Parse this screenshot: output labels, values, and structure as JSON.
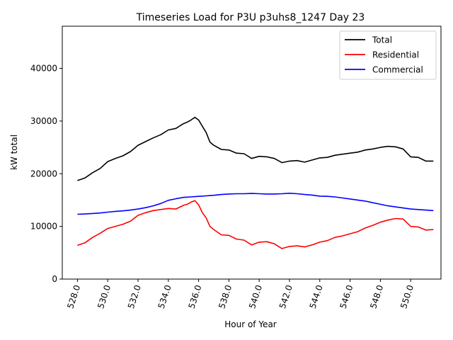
{
  "chart_data": {
    "type": "line",
    "title": "Timeseries Load for P3U p3uhs8_1247  Day 23",
    "xlabel": "Hour of Year",
    "ylabel": "kW total",
    "xlim": [
      527.0,
      552.0
    ],
    "ylim": [
      0,
      48000
    ],
    "x_ticks": [
      528.0,
      530.0,
      532.0,
      534.0,
      536.0,
      538.0,
      540.0,
      542.0,
      544.0,
      546.0,
      548.0,
      550.0
    ],
    "x_tick_labels": [
      "528.0",
      "530.0",
      "532.0",
      "534.0",
      "536.0",
      "538.0",
      "540.0",
      "542.0",
      "544.0",
      "546.0",
      "548.0",
      "550.0"
    ],
    "y_ticks": [
      0,
      10000,
      20000,
      30000,
      40000
    ],
    "y_tick_labels": [
      "0",
      "10000",
      "20000",
      "30000",
      "40000"
    ],
    "legend_position": "top-right",
    "series": [
      {
        "name": "Total",
        "color": "#000000",
        "x": [
          528.0,
          528.5,
          529.0,
          529.5,
          530.0,
          530.5,
          531.0,
          531.5,
          532.0,
          532.5,
          533.0,
          533.5,
          534.0,
          534.5,
          535.0,
          535.25,
          535.5,
          535.75,
          536.0,
          536.25,
          536.5,
          536.75,
          537.0,
          537.5,
          538.0,
          538.5,
          539.0,
          539.5,
          540.0,
          540.5,
          541.0,
          541.5,
          542.0,
          542.5,
          543.0,
          543.5,
          544.0,
          544.5,
          545.0,
          545.5,
          546.0,
          546.5,
          547.0,
          547.5,
          548.0,
          548.5,
          549.0,
          549.5,
          550.0,
          550.5,
          551.0,
          551.5
        ],
        "values": [
          18700,
          19200,
          20200,
          21000,
          22300,
          22900,
          23400,
          24200,
          25400,
          26100,
          26800,
          27400,
          28300,
          28600,
          29500,
          29800,
          30200,
          30700,
          30200,
          29000,
          27800,
          26000,
          25400,
          24600,
          24500,
          23900,
          23800,
          22900,
          23300,
          23200,
          22900,
          22100,
          22400,
          22500,
          22200,
          22600,
          23000,
          23100,
          23500,
          23700,
          23900,
          24100,
          24500,
          24700,
          25000,
          25200,
          25100,
          24700,
          23200,
          23100,
          22400,
          22400
        ]
      },
      {
        "name": "Residential",
        "color": "#ff0000",
        "x": [
          528.0,
          528.5,
          529.0,
          529.5,
          530.0,
          530.5,
          531.0,
          531.5,
          532.0,
          532.5,
          533.0,
          533.5,
          534.0,
          534.5,
          535.0,
          535.25,
          535.5,
          535.75,
          536.0,
          536.25,
          536.5,
          536.75,
          537.0,
          537.5,
          538.0,
          538.5,
          539.0,
          539.5,
          540.0,
          540.5,
          541.0,
          541.5,
          542.0,
          542.5,
          543.0,
          543.5,
          544.0,
          544.5,
          545.0,
          545.5,
          546.0,
          546.5,
          547.0,
          547.5,
          548.0,
          548.5,
          549.0,
          549.5,
          550.0,
          550.5,
          551.0,
          551.5
        ],
        "values": [
          6400,
          6900,
          7900,
          8700,
          9600,
          10000,
          10400,
          11000,
          12100,
          12600,
          13000,
          13200,
          13400,
          13300,
          14000,
          14200,
          14600,
          14900,
          14100,
          12600,
          11600,
          10000,
          9400,
          8400,
          8300,
          7600,
          7400,
          6500,
          7000,
          7100,
          6700,
          5800,
          6200,
          6300,
          6100,
          6500,
          7000,
          7300,
          7900,
          8200,
          8600,
          9000,
          9700,
          10200,
          10800,
          11200,
          11500,
          11400,
          10000,
          9900,
          9300,
          9400
        ]
      },
      {
        "name": "Commercial",
        "color": "#0000ff",
        "x": [
          528.0,
          528.5,
          529.0,
          529.5,
          530.0,
          530.5,
          531.0,
          531.5,
          532.0,
          532.5,
          533.0,
          533.5,
          534.0,
          534.5,
          535.0,
          535.25,
          535.5,
          535.75,
          536.0,
          536.25,
          536.5,
          536.75,
          537.0,
          537.5,
          538.0,
          538.5,
          539.0,
          539.5,
          540.0,
          540.5,
          541.0,
          541.5,
          542.0,
          542.5,
          543.0,
          543.5,
          544.0,
          544.5,
          545.0,
          545.5,
          546.0,
          546.5,
          547.0,
          547.5,
          548.0,
          548.5,
          549.0,
          549.5,
          550.0,
          550.5,
          551.0,
          551.5
        ],
        "values": [
          12300,
          12350,
          12450,
          12550,
          12700,
          12850,
          12950,
          13100,
          13300,
          13550,
          13900,
          14350,
          14950,
          15250,
          15500,
          15550,
          15600,
          15650,
          15700,
          15750,
          15800,
          15850,
          15900,
          16050,
          16150,
          16200,
          16200,
          16250,
          16200,
          16150,
          16150,
          16200,
          16300,
          16200,
          16050,
          15950,
          15750,
          15700,
          15600,
          15400,
          15200,
          15000,
          14800,
          14500,
          14200,
          13900,
          13700,
          13500,
          13300,
          13200,
          13100,
          13000
        ]
      }
    ]
  }
}
